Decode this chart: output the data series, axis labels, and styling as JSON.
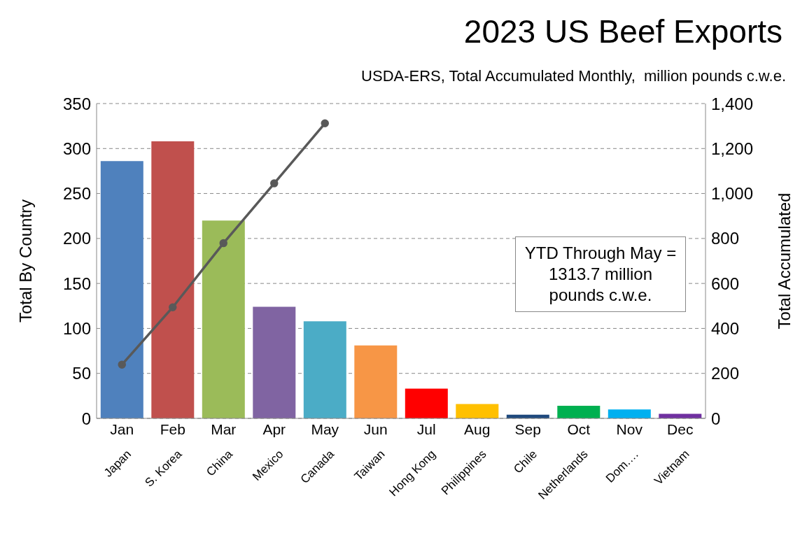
{
  "chart_data": {
    "type": "bar",
    "title": "2023 US Beef Exports",
    "subtitle": "USDA-ERS, Total Accumulated Monthly,  million pounds c.w.e.",
    "ylabel": "Total By Country",
    "y2label": "Total Accumulated",
    "categories": [
      "Jan",
      "Feb",
      "Mar",
      "Apr",
      "May",
      "Jun",
      "Jul",
      "Aug",
      "Sep",
      "Oct",
      "Nov",
      "Dec"
    ],
    "series": [
      {
        "colors": [
          "#4f81bd",
          "#c0504d",
          "#9bbb59",
          "#8064a2",
          "#4bacc6",
          "#f79646",
          "#ff0000",
          "#ffc000",
          "#1f497d",
          "#00b050",
          "#00b0f0",
          "#7030a0"
        ],
        "values": [
          286,
          308,
          220,
          124,
          108,
          81,
          33,
          16,
          4,
          14,
          10,
          5
        ],
        "value_labels": [
          "Japan",
          "S. Korea",
          "China",
          "Mexico",
          "Canada",
          "Taiwan",
          "Hong Kong",
          "Philippines",
          "Chile",
          "Netherlands",
          "Dom.…",
          "Vietnam"
        ]
      },
      {
        "type": "line",
        "axis": "y2",
        "color": "#595959",
        "values": [
          239,
          494,
          779,
          1045,
          1312,
          null,
          null,
          null,
          null,
          null,
          null,
          null
        ]
      }
    ],
    "ylim": [
      0,
      350
    ],
    "yticks": [
      0,
      50,
      100,
      150,
      200,
      250,
      300,
      350
    ],
    "y2lim": [
      0,
      1400
    ],
    "y2ticks": [
      0,
      200,
      400,
      600,
      800,
      {
        "value": 1000,
        "label": "1,000"
      },
      {
        "value": 1200,
        "label": "1,200"
      },
      {
        "value": 1400,
        "label": "1,400"
      }
    ],
    "grid": "y",
    "legend": false,
    "marker": "circle",
    "line_style": "solid",
    "annotations": [
      "YTD Through May = 1313.7 million pounds c.w.e."
    ]
  }
}
